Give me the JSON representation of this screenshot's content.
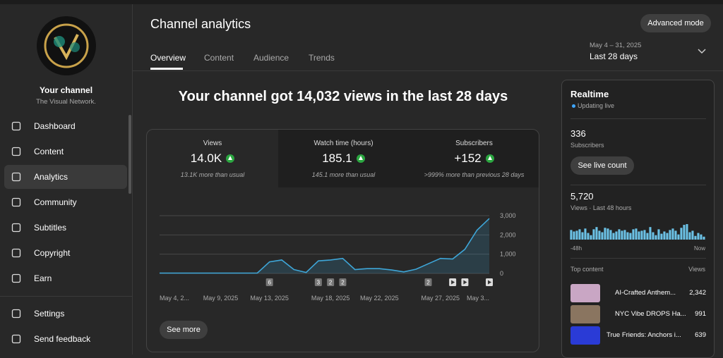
{
  "sidebar": {
    "channel_title": "Your channel",
    "channel_name": "The Visual Network.",
    "nav": [
      "Dashboard",
      "Content",
      "Analytics",
      "Community",
      "Subtitles",
      "Copyright",
      "Earn"
    ],
    "footer": [
      "Settings",
      "Send feedback"
    ]
  },
  "header": {
    "title": "Channel analytics",
    "tabs": [
      "Overview",
      "Content",
      "Audience",
      "Trends"
    ],
    "button": "Advanced mode",
    "date_range": "May 4 – 31, 2025",
    "period": "Last 28 days"
  },
  "headline": "Your channel got 14,032 views in the last 28 days",
  "metrics": [
    {
      "label": "Views",
      "value": "14.0K",
      "note": "13.1K more than usual"
    },
    {
      "label": "Watch time (hours)",
      "value": "185.1",
      "note": "145.1 more than usual"
    },
    {
      "label": "Subscribers",
      "value": "+152",
      "note": ">999% more than previous 28 days"
    }
  ],
  "chart_data": {
    "type": "line",
    "categories": [
      "May 4, 2...",
      null,
      null,
      null,
      null,
      "May 9, 2025",
      null,
      null,
      null,
      "May 13, 2025",
      null,
      null,
      null,
      null,
      "May 18, 2025",
      null,
      null,
      null,
      "May 22, 2025",
      null,
      null,
      null,
      null,
      "May 27, 2025",
      null,
      null,
      null,
      "May 3..."
    ],
    "values": [
      20,
      20,
      20,
      20,
      20,
      20,
      20,
      20,
      20,
      600,
      700,
      200,
      50,
      650,
      700,
      780,
      200,
      250,
      250,
      180,
      80,
      220,
      500,
      780,
      750,
      1250,
      2250,
      2850
    ],
    "color": "#3ea6d8",
    "ylim": [
      0,
      3000
    ],
    "yticks": [
      0,
      {
        "value": 1000,
        "label": "1,000"
      },
      {
        "value": 2000,
        "label": "2,000"
      },
      {
        "value": 3000,
        "label": "3,000"
      }
    ],
    "grid": true,
    "markers": [
      "6",
      "3",
      "2",
      "2",
      "2"
    ]
  },
  "see_more": "See more",
  "realtime": {
    "title": "Realtime",
    "status": "Updating live",
    "subscribers": "336",
    "subscribers_label": "Subscribers",
    "button": "See live count",
    "views": "5,720",
    "views_label": "Views · Last 48 hours",
    "bars": {
      "type": "bar",
      "color": "#6cc2e6",
      "values": [
        130,
        110,
        120,
        140,
        100,
        150,
        90,
        60,
        140,
        170,
        120,
        100,
        160,
        150,
        130,
        90,
        110,
        140,
        120,
        130,
        100,
        90,
        140,
        150,
        110,
        120,
        130,
        90,
        170,
        100,
        60,
        140,
        80,
        110,
        90,
        130,
        150,
        120,
        70,
        160,
        200,
        210,
        100,
        120,
        50,
        90,
        70,
        40
      ],
      "start_label": "-48h",
      "end_label": "Now"
    },
    "top_content": "Top content",
    "views_header": "Views",
    "rows": [
      {
        "title": "AI-Crafted Anthem...",
        "views": "2,342"
      },
      {
        "title": "NYC Vibe DROPS Ha...",
        "views": "991"
      },
      {
        "title": "True Friends: Anchors i...",
        "views": "639"
      }
    ]
  }
}
